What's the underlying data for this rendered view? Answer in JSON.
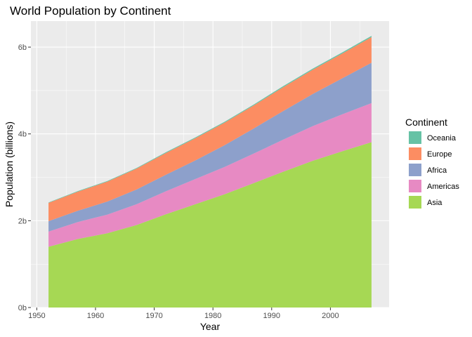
{
  "chart_data": {
    "type": "area",
    "stacked": true,
    "title": "World Population by Continent",
    "xlabel": "Year",
    "ylabel": "Population (billions)",
    "xlim": [
      1949,
      2010
    ],
    "ylim": [
      0,
      6.6
    ],
    "x_ticks": [
      1950,
      1960,
      1970,
      1980,
      1990,
      2000
    ],
    "y_ticks": [
      0,
      2,
      4,
      6
    ],
    "y_tick_labels": [
      "0b",
      "2b",
      "4b",
      "6b"
    ],
    "grid": true,
    "legend": {
      "title": "Continent",
      "position": "right"
    },
    "x": [
      1952,
      1957,
      1962,
      1967,
      1972,
      1977,
      1982,
      1987,
      1992,
      1997,
      2002,
      2007
    ],
    "series": [
      {
        "name": "Asia",
        "color": "#A6D854",
        "values": [
          1.4,
          1.58,
          1.71,
          1.9,
          2.15,
          2.38,
          2.61,
          2.87,
          3.13,
          3.38,
          3.6,
          3.81
        ]
      },
      {
        "name": "Americas",
        "color": "#E78AC3",
        "values": [
          0.35,
          0.39,
          0.43,
          0.48,
          0.53,
          0.58,
          0.63,
          0.68,
          0.74,
          0.8,
          0.85,
          0.9
        ]
      },
      {
        "name": "Africa",
        "color": "#8DA0CB",
        "values": [
          0.24,
          0.26,
          0.3,
          0.34,
          0.38,
          0.43,
          0.5,
          0.58,
          0.66,
          0.74,
          0.83,
          0.93
        ]
      },
      {
        "name": "Europe",
        "color": "#FC8D62",
        "values": [
          0.42,
          0.44,
          0.46,
          0.48,
          0.5,
          0.51,
          0.52,
          0.53,
          0.55,
          0.56,
          0.57,
          0.59
        ]
      },
      {
        "name": "Oceania",
        "color": "#66C2A5",
        "values": [
          0.011,
          0.013,
          0.014,
          0.016,
          0.018,
          0.019,
          0.021,
          0.022,
          0.024,
          0.025,
          0.027,
          0.029
        ]
      }
    ]
  }
}
